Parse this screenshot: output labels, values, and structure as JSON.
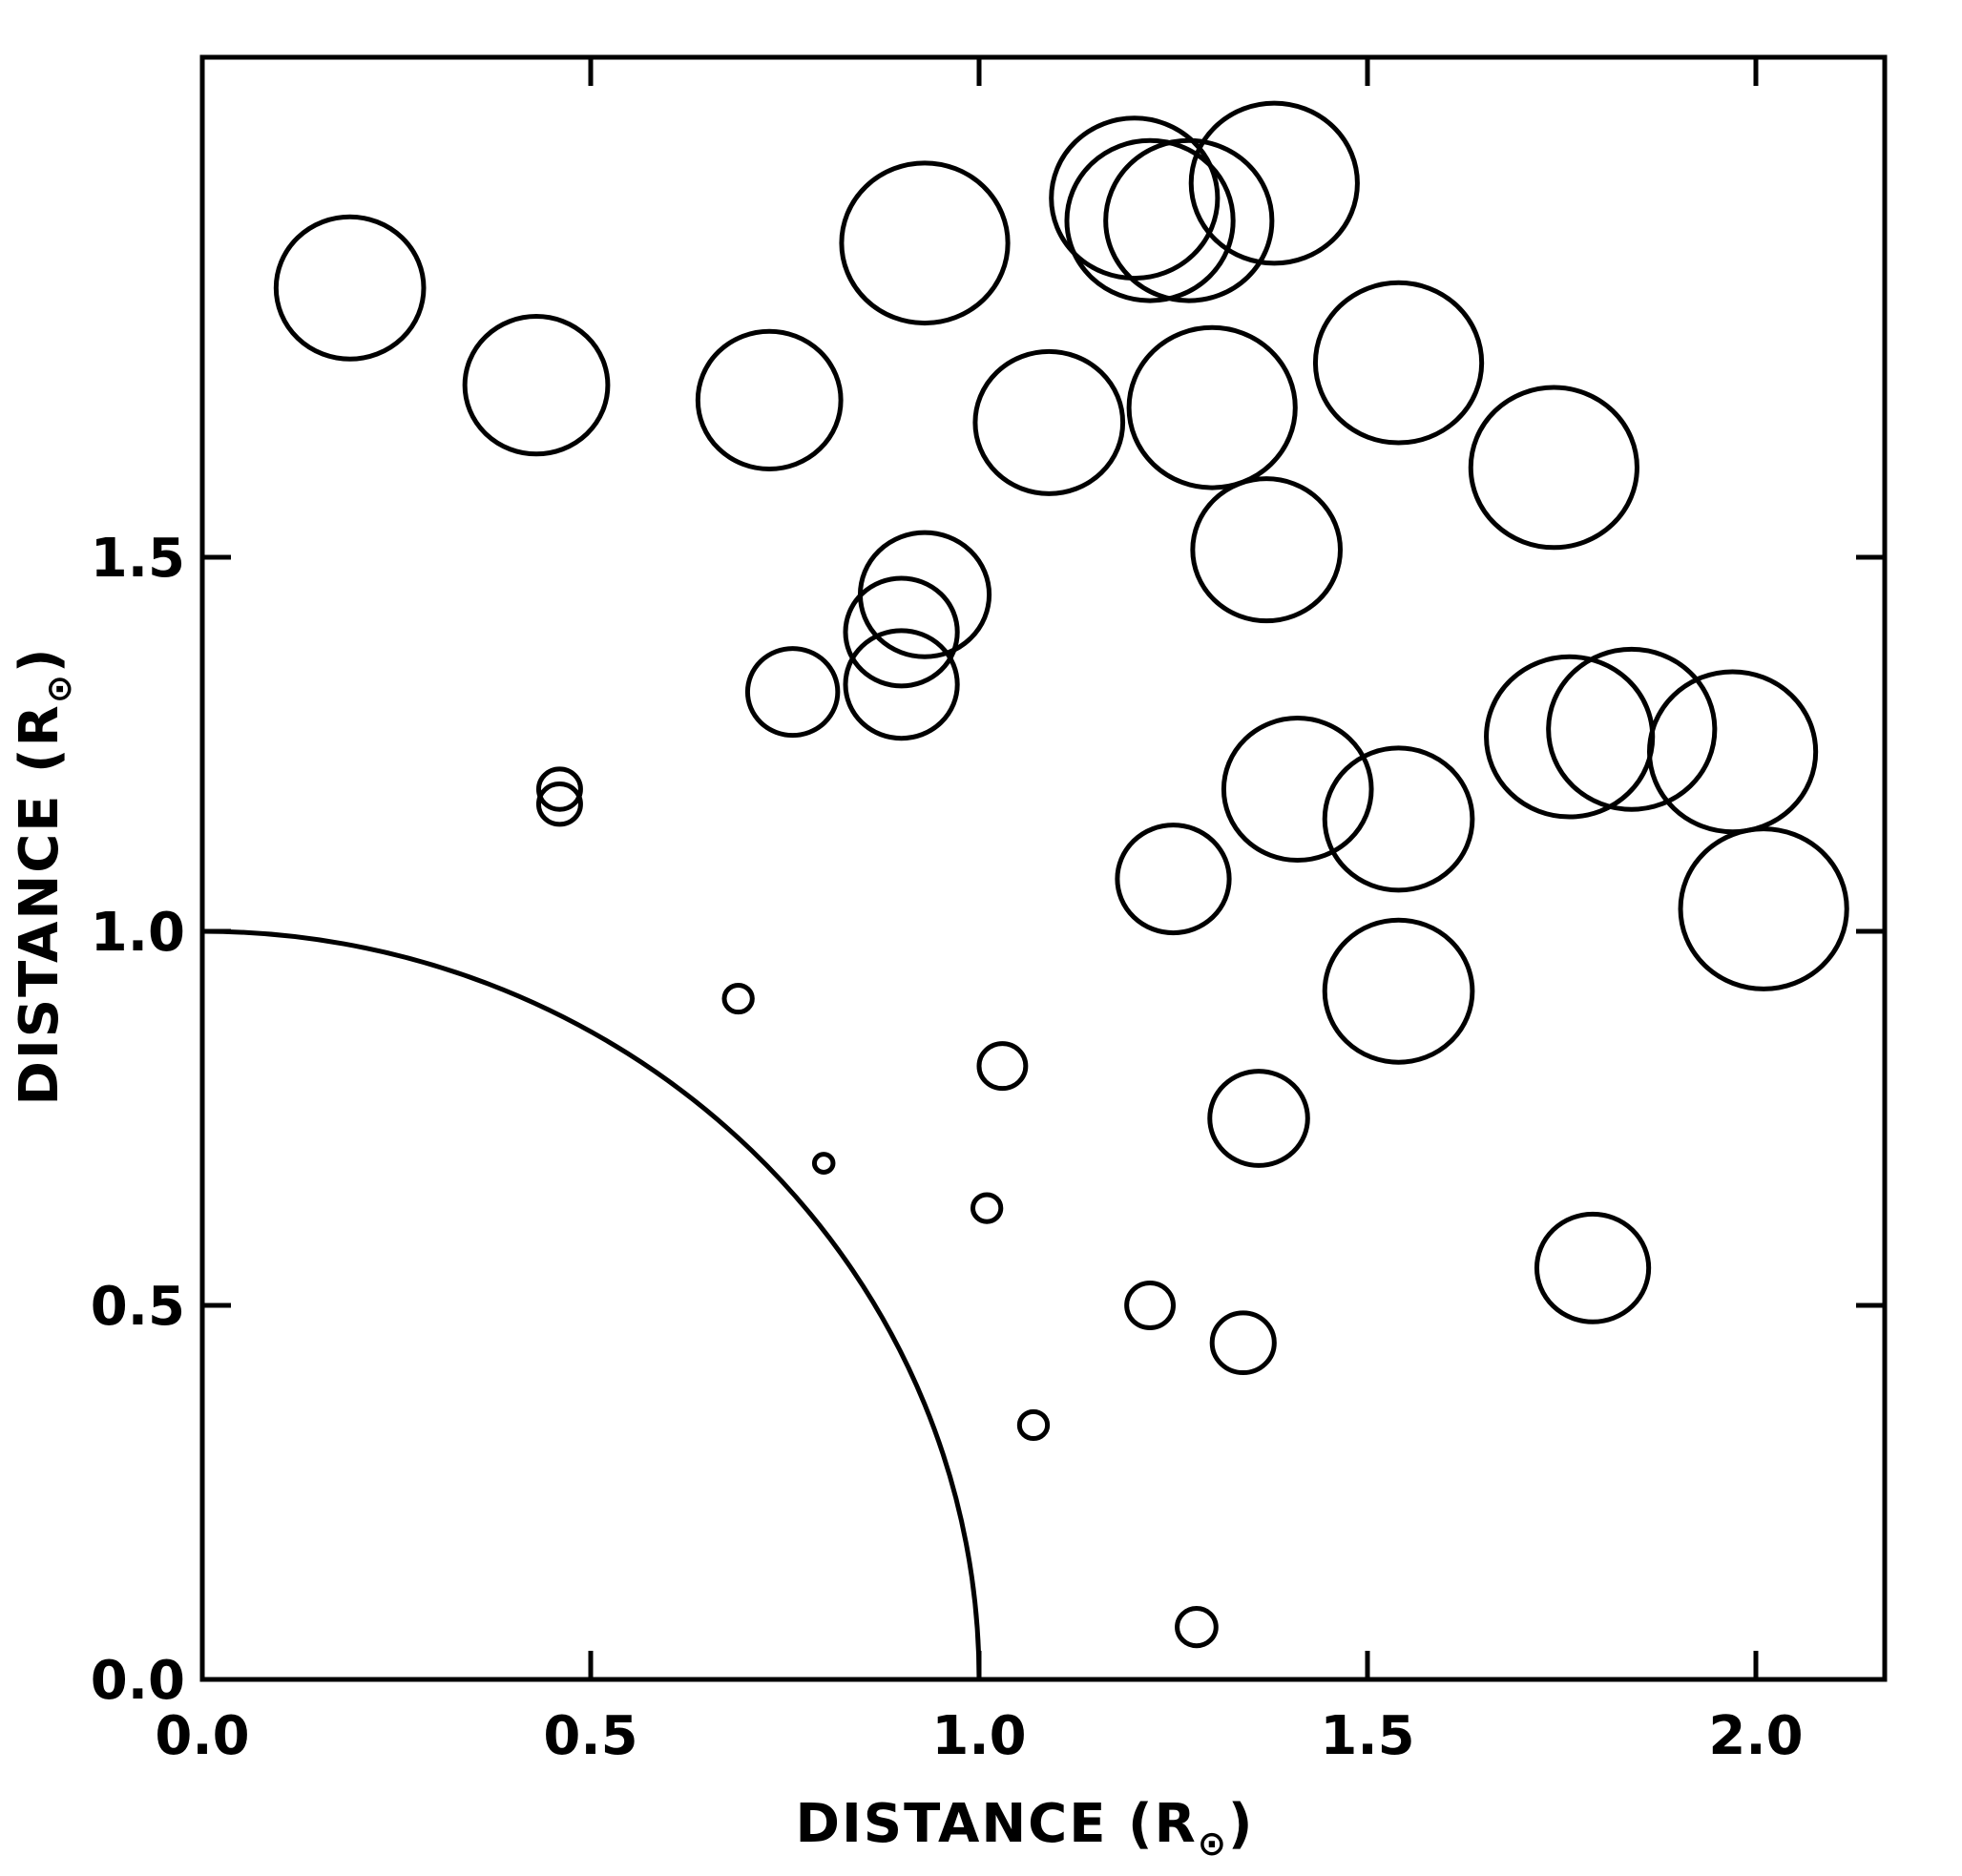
{
  "chart_data": {
    "type": "scatter",
    "title": "",
    "xlabel": "DISTANCE (R",
    "ylabel": "DISTANCE (R",
    "axis_unit_subscript": "⊙",
    "xlim": [
      0.0,
      2.15
    ],
    "ylim": [
      0.0,
      2.15
    ],
    "x_ticks": [
      0.0,
      0.5,
      1.0,
      1.5,
      2.0
    ],
    "y_ticks": [
      0.0,
      0.5,
      1.0,
      1.5
    ],
    "x_tick_labels": [
      "0.0",
      "0.5",
      "1.0",
      "1.5",
      "2.0"
    ],
    "y_tick_labels": [
      "0.0",
      "0.5",
      "1.0",
      "1.5"
    ],
    "reference_arc": {
      "radius": 1.0
    },
    "points": [
      {
        "x": 0.19,
        "y": 1.86,
        "r": 0.095
      },
      {
        "x": 0.43,
        "y": 1.73,
        "r": 0.092
      },
      {
        "x": 0.73,
        "y": 1.71,
        "r": 0.092
      },
      {
        "x": 0.93,
        "y": 1.92,
        "r": 0.107
      },
      {
        "x": 1.09,
        "y": 1.68,
        "r": 0.095
      },
      {
        "x": 1.2,
        "y": 1.98,
        "r": 0.107
      },
      {
        "x": 1.22,
        "y": 1.95,
        "r": 0.107
      },
      {
        "x": 1.27,
        "y": 1.95,
        "r": 0.107
      },
      {
        "x": 1.38,
        "y": 2.0,
        "r": 0.107
      },
      {
        "x": 1.3,
        "y": 1.7,
        "r": 0.107
      },
      {
        "x": 1.54,
        "y": 1.76,
        "r": 0.107
      },
      {
        "x": 1.74,
        "y": 1.62,
        "r": 0.107
      },
      {
        "x": 1.37,
        "y": 1.51,
        "r": 0.095
      },
      {
        "x": 0.93,
        "y": 1.45,
        "r": 0.083
      },
      {
        "x": 0.9,
        "y": 1.4,
        "r": 0.072
      },
      {
        "x": 0.9,
        "y": 1.33,
        "r": 0.072
      },
      {
        "x": 0.76,
        "y": 1.32,
        "r": 0.058
      },
      {
        "x": 0.46,
        "y": 1.19,
        "r": 0.027
      },
      {
        "x": 0.46,
        "y": 1.17,
        "r": 0.027
      },
      {
        "x": 1.41,
        "y": 1.19,
        "r": 0.095
      },
      {
        "x": 1.54,
        "y": 1.15,
        "r": 0.095
      },
      {
        "x": 1.76,
        "y": 1.26,
        "r": 0.107
      },
      {
        "x": 1.84,
        "y": 1.27,
        "r": 0.107
      },
      {
        "x": 1.97,
        "y": 1.24,
        "r": 0.107
      },
      {
        "x": 2.01,
        "y": 1.03,
        "r": 0.107
      },
      {
        "x": 1.25,
        "y": 1.07,
        "r": 0.072
      },
      {
        "x": 1.54,
        "y": 0.92,
        "r": 0.095
      },
      {
        "x": 0.69,
        "y": 0.91,
        "r": 0.018
      },
      {
        "x": 1.03,
        "y": 0.82,
        "r": 0.03
      },
      {
        "x": 1.36,
        "y": 0.75,
        "r": 0.063
      },
      {
        "x": 0.8,
        "y": 0.69,
        "r": 0.012
      },
      {
        "x": 1.01,
        "y": 0.63,
        "r": 0.018
      },
      {
        "x": 1.79,
        "y": 0.55,
        "r": 0.072
      },
      {
        "x": 1.22,
        "y": 0.5,
        "r": 0.03
      },
      {
        "x": 1.34,
        "y": 0.45,
        "r": 0.04
      },
      {
        "x": 1.07,
        "y": 0.34,
        "r": 0.018
      },
      {
        "x": 1.28,
        "y": 0.07,
        "r": 0.025
      }
    ]
  }
}
